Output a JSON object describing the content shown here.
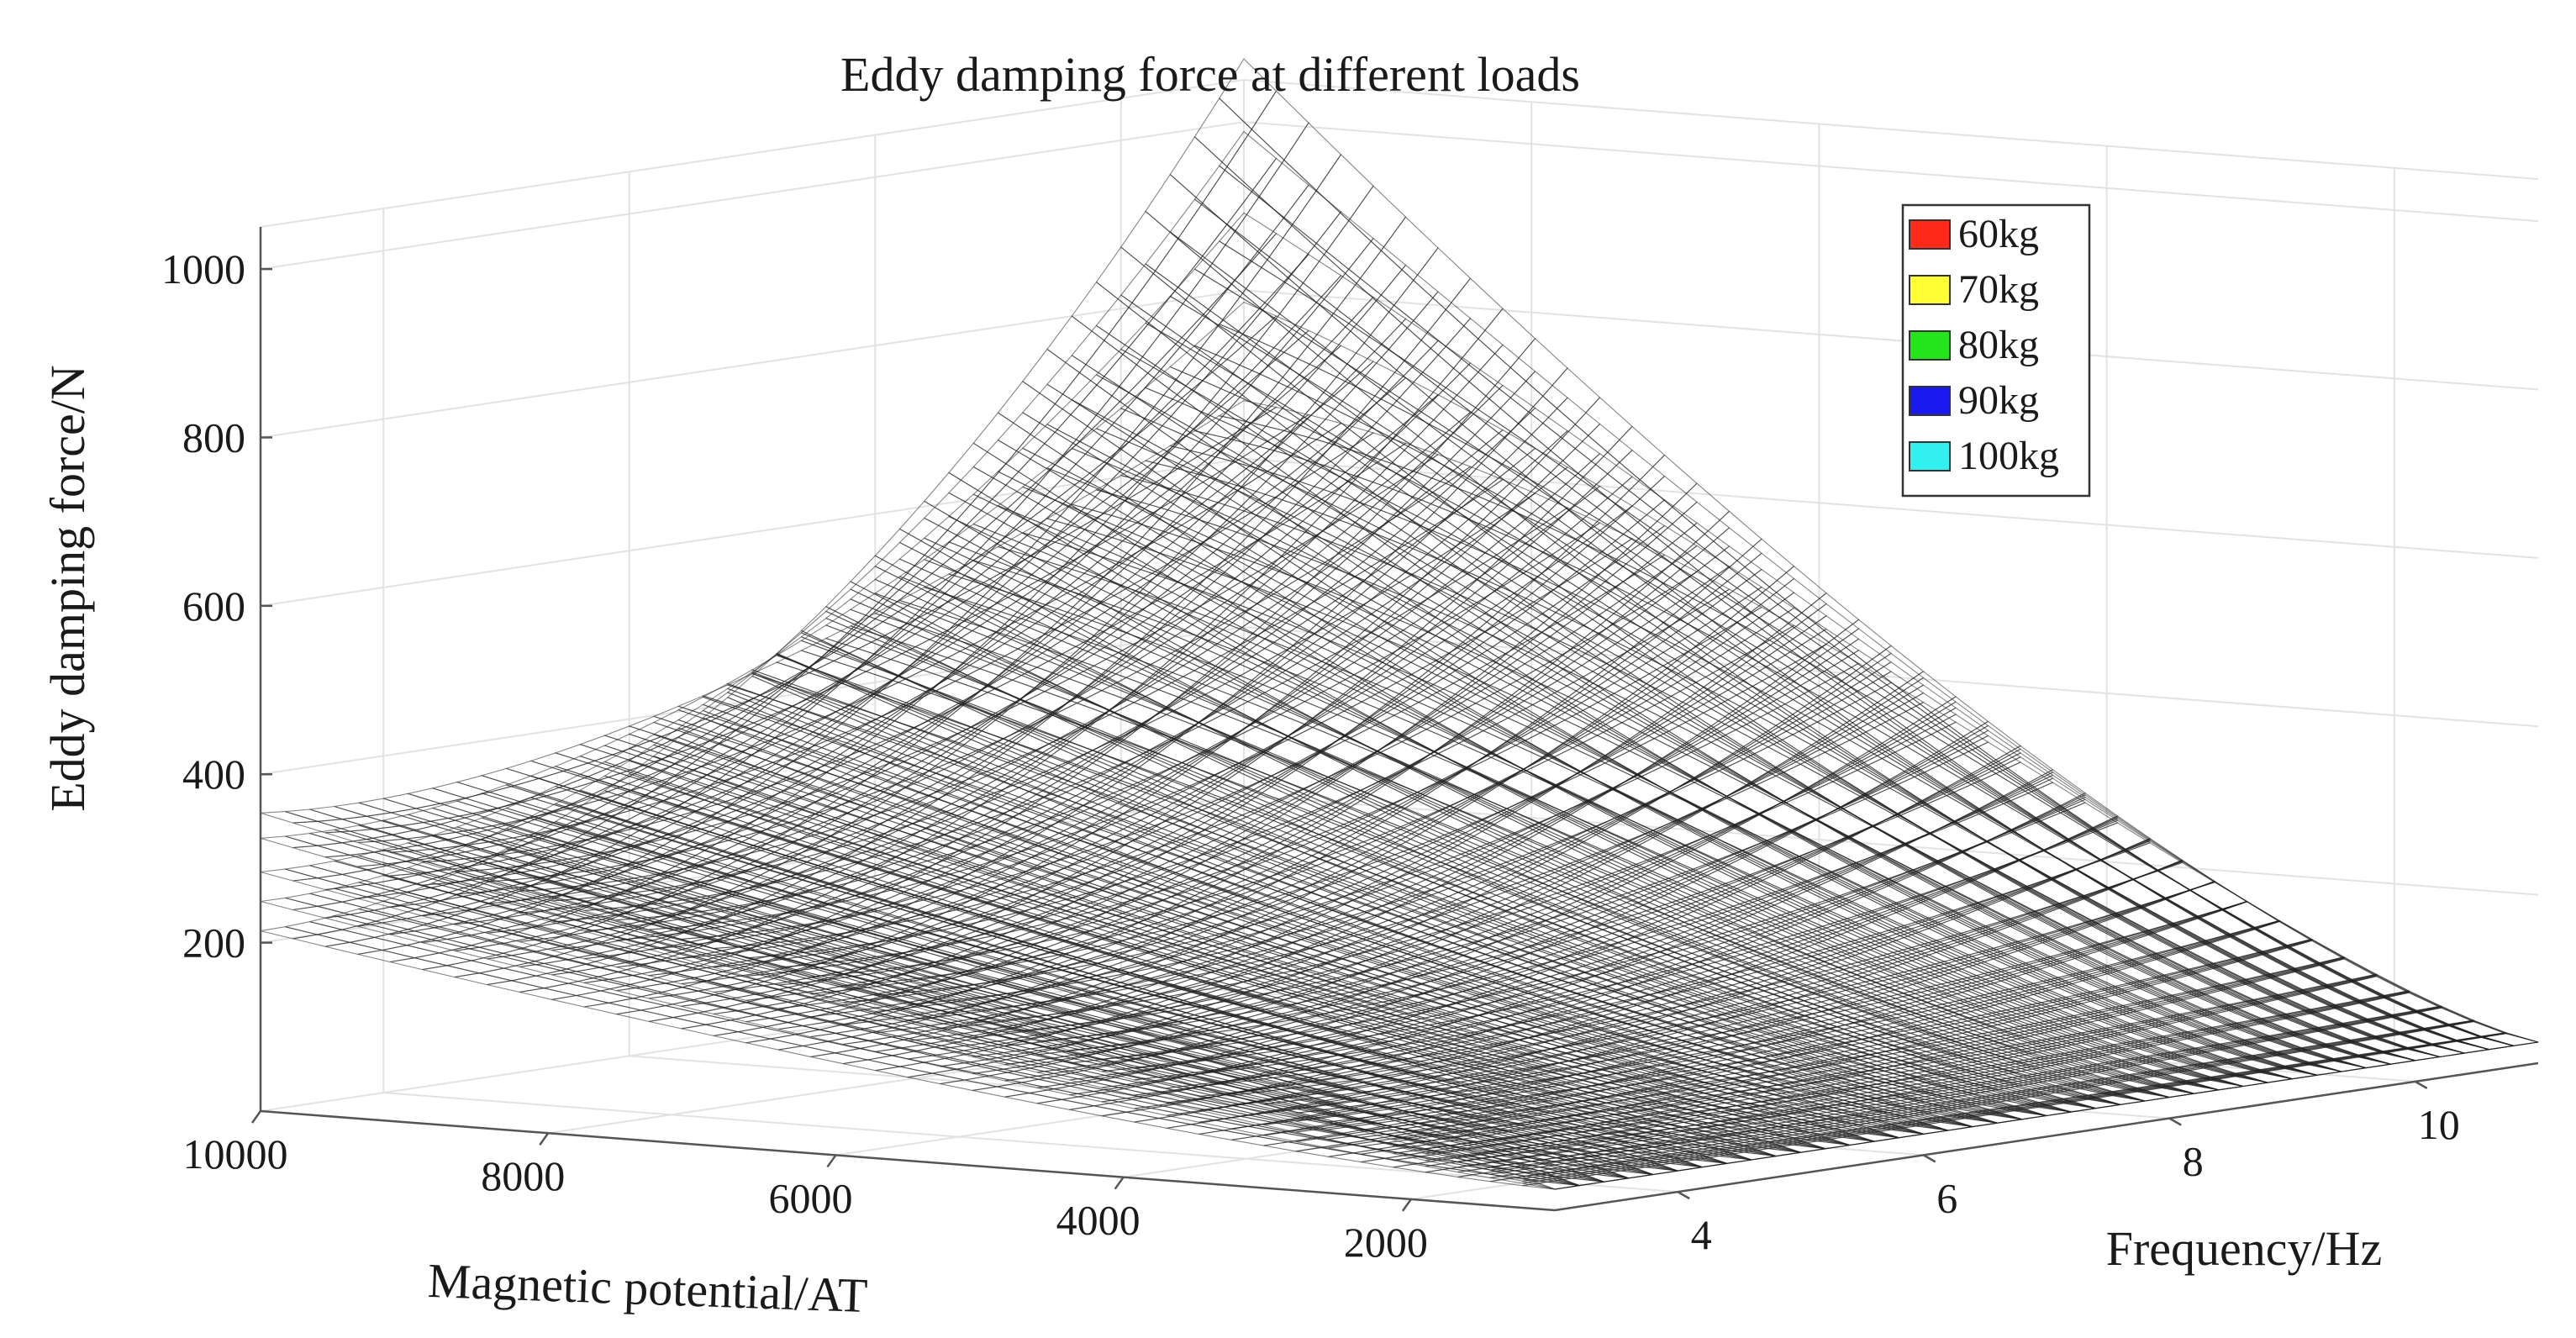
{
  "chart_data": {
    "type": "surface3d",
    "title": "Eddy damping force at different loads",
    "xlabel": "Magnetic potential/AT",
    "ylabel": "Frequency/Hz",
    "zlabel": "Eddy damping force/N",
    "x_ticks": [
      "10000",
      "8000",
      "6000",
      "4000",
      "2000"
    ],
    "y_ticks": [
      "4",
      "6",
      "8",
      "10"
    ],
    "z_ticks": [
      "1000",
      "800",
      "600",
      "400",
      "200"
    ],
    "x_range": [
      1000,
      10000
    ],
    "y_range": [
      3,
      11
    ],
    "z_range": [
      0,
      1050
    ],
    "legend_position": "top-right",
    "series": [
      {
        "name": "60kg",
        "color": "#ff2a1a"
      },
      {
        "name": "70kg",
        "color": "#ffff33"
      },
      {
        "name": "80kg",
        "color": "#22e61a"
      },
      {
        "name": "90kg",
        "color": "#1a1aee"
      },
      {
        "name": "100kg",
        "color": "#33f0f0"
      }
    ],
    "surface_values": {
      "description_points": [
        {
          "magnetic_potential": 10000,
          "frequency": 3,
          "force_60kg": 190,
          "force_100kg": 330
        },
        {
          "magnetic_potential": 1000,
          "frequency": 3,
          "force_60kg": 10,
          "force_100kg": 20
        },
        {
          "magnetic_potential": 1000,
          "frequency": 11,
          "force_60kg": 30
        },
        {
          "magnetic_potential": 10000,
          "frequency": 11,
          "force_60kg": 1050
        }
      ]
    }
  }
}
